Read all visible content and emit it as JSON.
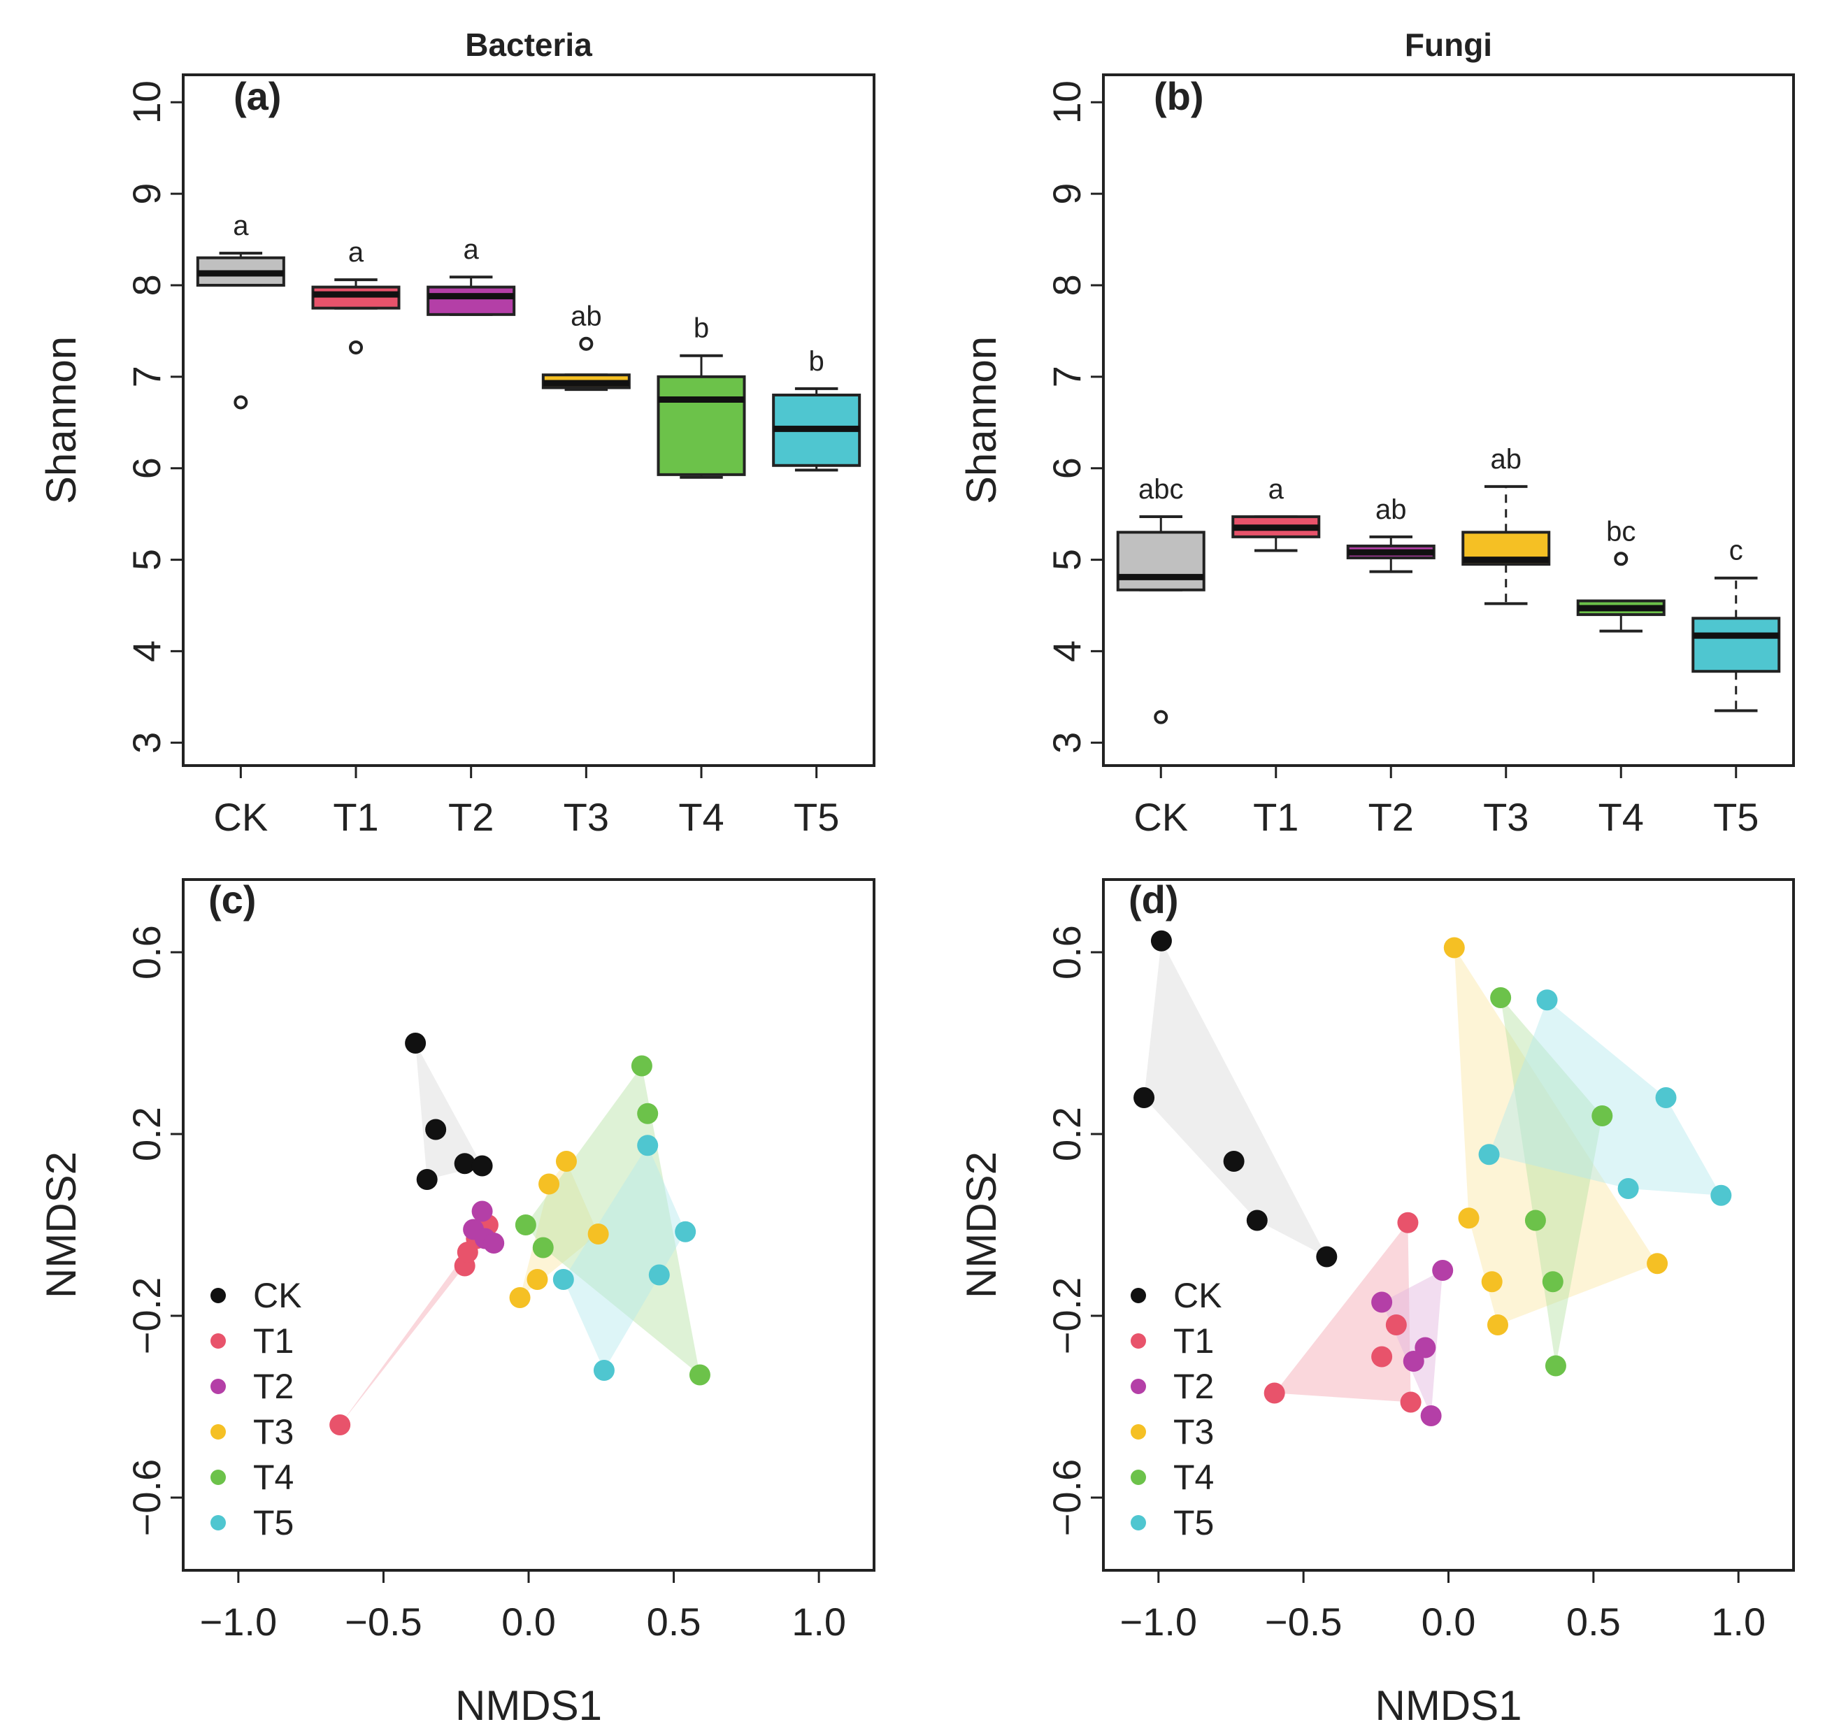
{
  "chart_data": [
    {
      "panel": "a",
      "type": "box",
      "title": "Bacteria",
      "label": "(a)",
      "xlabel": "",
      "ylabel": "Shannon",
      "ylim": [
        2.75,
        10.3
      ],
      "yticks": [
        3,
        4,
        5,
        6,
        7,
        8,
        9,
        10
      ],
      "ytick_labels": [
        "3",
        "4",
        "5",
        "6",
        "7",
        "8",
        "9",
        "10"
      ],
      "categories": [
        "CK",
        "T1",
        "T2",
        "T3",
        "T4",
        "T5"
      ],
      "colors": [
        "#c0c0c0",
        "#e8536b",
        "#b43fa7",
        "#f5c024",
        "#6cc24a",
        "#4fc6d0"
      ],
      "boxes": [
        {
          "name": "CK",
          "whisker_low": 8.0,
          "q1": 8.0,
          "median": 8.13,
          "q3": 8.3,
          "whisker_high": 8.35,
          "outliers": [
            6.72
          ],
          "whisker_dashed": false,
          "letter": "a"
        },
        {
          "name": "T1",
          "whisker_low": 7.75,
          "q1": 7.75,
          "median": 7.9,
          "q3": 7.98,
          "whisker_high": 8.06,
          "outliers": [
            7.32
          ],
          "whisker_dashed": false,
          "letter": "a"
        },
        {
          "name": "T2",
          "whisker_low": 7.68,
          "q1": 7.68,
          "median": 7.88,
          "q3": 7.98,
          "whisker_high": 8.09,
          "outliers": [],
          "whisker_dashed": false,
          "letter": "a"
        },
        {
          "name": "T3",
          "whisker_low": 6.86,
          "q1": 6.88,
          "median": 6.93,
          "q3": 7.02,
          "whisker_high": 7.02,
          "outliers": [
            7.36
          ],
          "whisker_dashed": false,
          "letter": "ab"
        },
        {
          "name": "T4",
          "whisker_low": 5.9,
          "q1": 5.93,
          "median": 6.75,
          "q3": 7.0,
          "whisker_high": 7.23,
          "outliers": [],
          "whisker_dashed": false,
          "letter": "b"
        },
        {
          "name": "T5",
          "whisker_low": 5.98,
          "q1": 6.03,
          "median": 6.43,
          "q3": 6.8,
          "whisker_high": 6.87,
          "outliers": [],
          "whisker_dashed": false,
          "letter": "b"
        }
      ]
    },
    {
      "panel": "b",
      "type": "box",
      "title": "Fungi",
      "label": "(b)",
      "xlabel": "",
      "ylabel": "Shannon",
      "ylim": [
        2.75,
        10.3
      ],
      "yticks": [
        3,
        4,
        5,
        6,
        7,
        8,
        9,
        10
      ],
      "ytick_labels": [
        "3",
        "4",
        "5",
        "6",
        "7",
        "8",
        "9",
        "10"
      ],
      "categories": [
        "CK",
        "T1",
        "T2",
        "T3",
        "T4",
        "T5"
      ],
      "colors": [
        "#c0c0c0",
        "#e8536b",
        "#b43fa7",
        "#f5c024",
        "#6cc24a",
        "#4fc6d0"
      ],
      "boxes": [
        {
          "name": "CK",
          "whisker_low": 4.67,
          "q1": 4.67,
          "median": 4.81,
          "q3": 5.3,
          "whisker_high": 5.47,
          "outliers": [
            3.28
          ],
          "whisker_dashed": false,
          "letter": "abc"
        },
        {
          "name": "T1",
          "whisker_low": 5.1,
          "q1": 5.25,
          "median": 5.35,
          "q3": 5.47,
          "whisker_high": 5.47,
          "outliers": [],
          "whisker_dashed": false,
          "letter": "a"
        },
        {
          "name": "T2",
          "whisker_low": 4.87,
          "q1": 5.02,
          "median": 5.08,
          "q3": 5.15,
          "whisker_high": 5.25,
          "outliers": [],
          "whisker_dashed": false,
          "letter": "ab"
        },
        {
          "name": "T3",
          "whisker_low": 4.52,
          "q1": 4.95,
          "median": 5.0,
          "q3": 5.3,
          "whisker_high": 5.8,
          "outliers": [],
          "whisker_dashed": true,
          "letter": "ab"
        },
        {
          "name": "T4",
          "whisker_low": 4.22,
          "q1": 4.4,
          "median": 4.47,
          "q3": 4.55,
          "whisker_high": 4.55,
          "outliers": [
            5.01
          ],
          "whisker_dashed": false,
          "letter": "bc"
        },
        {
          "name": "T5",
          "whisker_low": 3.35,
          "q1": 3.78,
          "median": 4.17,
          "q3": 4.36,
          "whisker_high": 4.8,
          "outliers": [],
          "whisker_dashed": true,
          "letter": "c"
        }
      ]
    },
    {
      "panel": "c",
      "type": "scatter",
      "title": "",
      "label": "(c)",
      "xlabel": "NMDS1",
      "ylabel": "NMDS2",
      "xlim": [
        -1.19,
        1.19
      ],
      "ylim": [
        -0.76,
        0.76
      ],
      "xticks": [
        -1.0,
        -0.5,
        0.0,
        0.5,
        1.0
      ],
      "xtick_labels": [
        "−1.0",
        "−0.5",
        "0.0",
        "0.5",
        "1.0"
      ],
      "yticks": [
        -0.6,
        -0.2,
        0.2,
        0.6
      ],
      "ytick_labels": [
        "−0.6",
        "−0.2",
        "0.2",
        "0.6"
      ],
      "legend_position": "bottom-left",
      "series": [
        {
          "name": "CK",
          "color": "#111111",
          "hull_color": "#d9d9d9",
          "points": [
            [
              -0.39,
              0.4
            ],
            [
              -0.32,
              0.21
            ],
            [
              -0.35,
              0.1
            ],
            [
              -0.22,
              0.135
            ],
            [
              -0.16,
              0.13
            ]
          ]
        },
        {
          "name": "T1",
          "color": "#e8536b",
          "hull_color": "#f4a6b2",
          "points": [
            [
              -0.65,
              -0.44
            ],
            [
              -0.22,
              -0.09
            ],
            [
              -0.21,
              -0.06
            ],
            [
              -0.18,
              -0.03
            ],
            [
              -0.14,
              0.0
            ]
          ]
        },
        {
          "name": "T2",
          "color": "#b43fa7",
          "hull_color": "#e3b3dd",
          "points": [
            [
              -0.19,
              -0.01
            ],
            [
              -0.16,
              0.03
            ],
            [
              -0.15,
              -0.03
            ],
            [
              -0.12,
              -0.04
            ]
          ]
        },
        {
          "name": "T3",
          "color": "#f5c024",
          "hull_color": "#fbe7a4",
          "points": [
            [
              -0.03,
              -0.16
            ],
            [
              0.03,
              -0.12
            ],
            [
              0.07,
              0.09
            ],
            [
              0.13,
              0.14
            ],
            [
              0.24,
              -0.02
            ]
          ]
        },
        {
          "name": "T4",
          "color": "#6cc24a",
          "hull_color": "#b6e3a3",
          "points": [
            [
              -0.01,
              0.0
            ],
            [
              0.05,
              -0.05
            ],
            [
              0.39,
              0.35
            ],
            [
              0.41,
              0.245
            ],
            [
              0.59,
              -0.33
            ]
          ]
        },
        {
          "name": "T5",
          "color": "#4fc6d0",
          "hull_color": "#b3e9ee",
          "points": [
            [
              0.12,
              -0.12
            ],
            [
              0.26,
              -0.32
            ],
            [
              0.41,
              0.175
            ],
            [
              0.45,
              -0.11
            ],
            [
              0.54,
              -0.015
            ]
          ]
        }
      ]
    },
    {
      "panel": "d",
      "type": "scatter",
      "title": "",
      "label": "(d)",
      "xlabel": "NMDS1",
      "ylabel": "NMDS2",
      "xlim": [
        -1.19,
        1.19
      ],
      "ylim": [
        -0.76,
        0.76
      ],
      "xticks": [
        -1.0,
        -0.5,
        0.0,
        0.5,
        1.0
      ],
      "xtick_labels": [
        "−1.0",
        "−0.5",
        "0.0",
        "0.5",
        "1.0"
      ],
      "yticks": [
        -0.6,
        -0.2,
        0.2,
        0.6
      ],
      "ytick_labels": [
        "−0.6",
        "−0.2",
        "0.2",
        "0.6"
      ],
      "legend_position": "bottom-left",
      "series": [
        {
          "name": "CK",
          "color": "#111111",
          "hull_color": "#d9d9d9",
          "points": [
            [
              -0.99,
              0.625
            ],
            [
              -1.05,
              0.28
            ],
            [
              -0.74,
              0.14
            ],
            [
              -0.66,
              0.01
            ],
            [
              -0.42,
              -0.07
            ]
          ]
        },
        {
          "name": "T1",
          "color": "#e8536b",
          "hull_color": "#f4a6b2",
          "points": [
            [
              -0.6,
              -0.37
            ],
            [
              -0.23,
              -0.29
            ],
            [
              -0.18,
              -0.22
            ],
            [
              -0.13,
              -0.39
            ],
            [
              -0.14,
              0.005
            ]
          ]
        },
        {
          "name": "T2",
          "color": "#b43fa7",
          "hull_color": "#e3b3dd",
          "points": [
            [
              -0.23,
              -0.17
            ],
            [
              -0.12,
              -0.3
            ],
            [
              -0.08,
              -0.27
            ],
            [
              -0.06,
              -0.42
            ],
            [
              -0.02,
              -0.1
            ]
          ]
        },
        {
          "name": "T3",
          "color": "#f5c024",
          "hull_color": "#fbe7a4",
          "points": [
            [
              0.02,
              0.61
            ],
            [
              0.07,
              0.015
            ],
            [
              0.15,
              -0.125
            ],
            [
              0.17,
              -0.22
            ],
            [
              0.72,
              -0.085
            ]
          ]
        },
        {
          "name": "T4",
          "color": "#6cc24a",
          "hull_color": "#b6e3a3",
          "points": [
            [
              0.18,
              0.5
            ],
            [
              0.3,
              0.01
            ],
            [
              0.36,
              -0.125
            ],
            [
              0.37,
              -0.31
            ],
            [
              0.53,
              0.24
            ]
          ]
        },
        {
          "name": "T5",
          "color": "#4fc6d0",
          "hull_color": "#b3e9ee",
          "points": [
            [
              0.14,
              0.155
            ],
            [
              0.34,
              0.495
            ],
            [
              0.62,
              0.08
            ],
            [
              0.75,
              0.28
            ],
            [
              0.94,
              0.065
            ]
          ]
        }
      ]
    }
  ]
}
